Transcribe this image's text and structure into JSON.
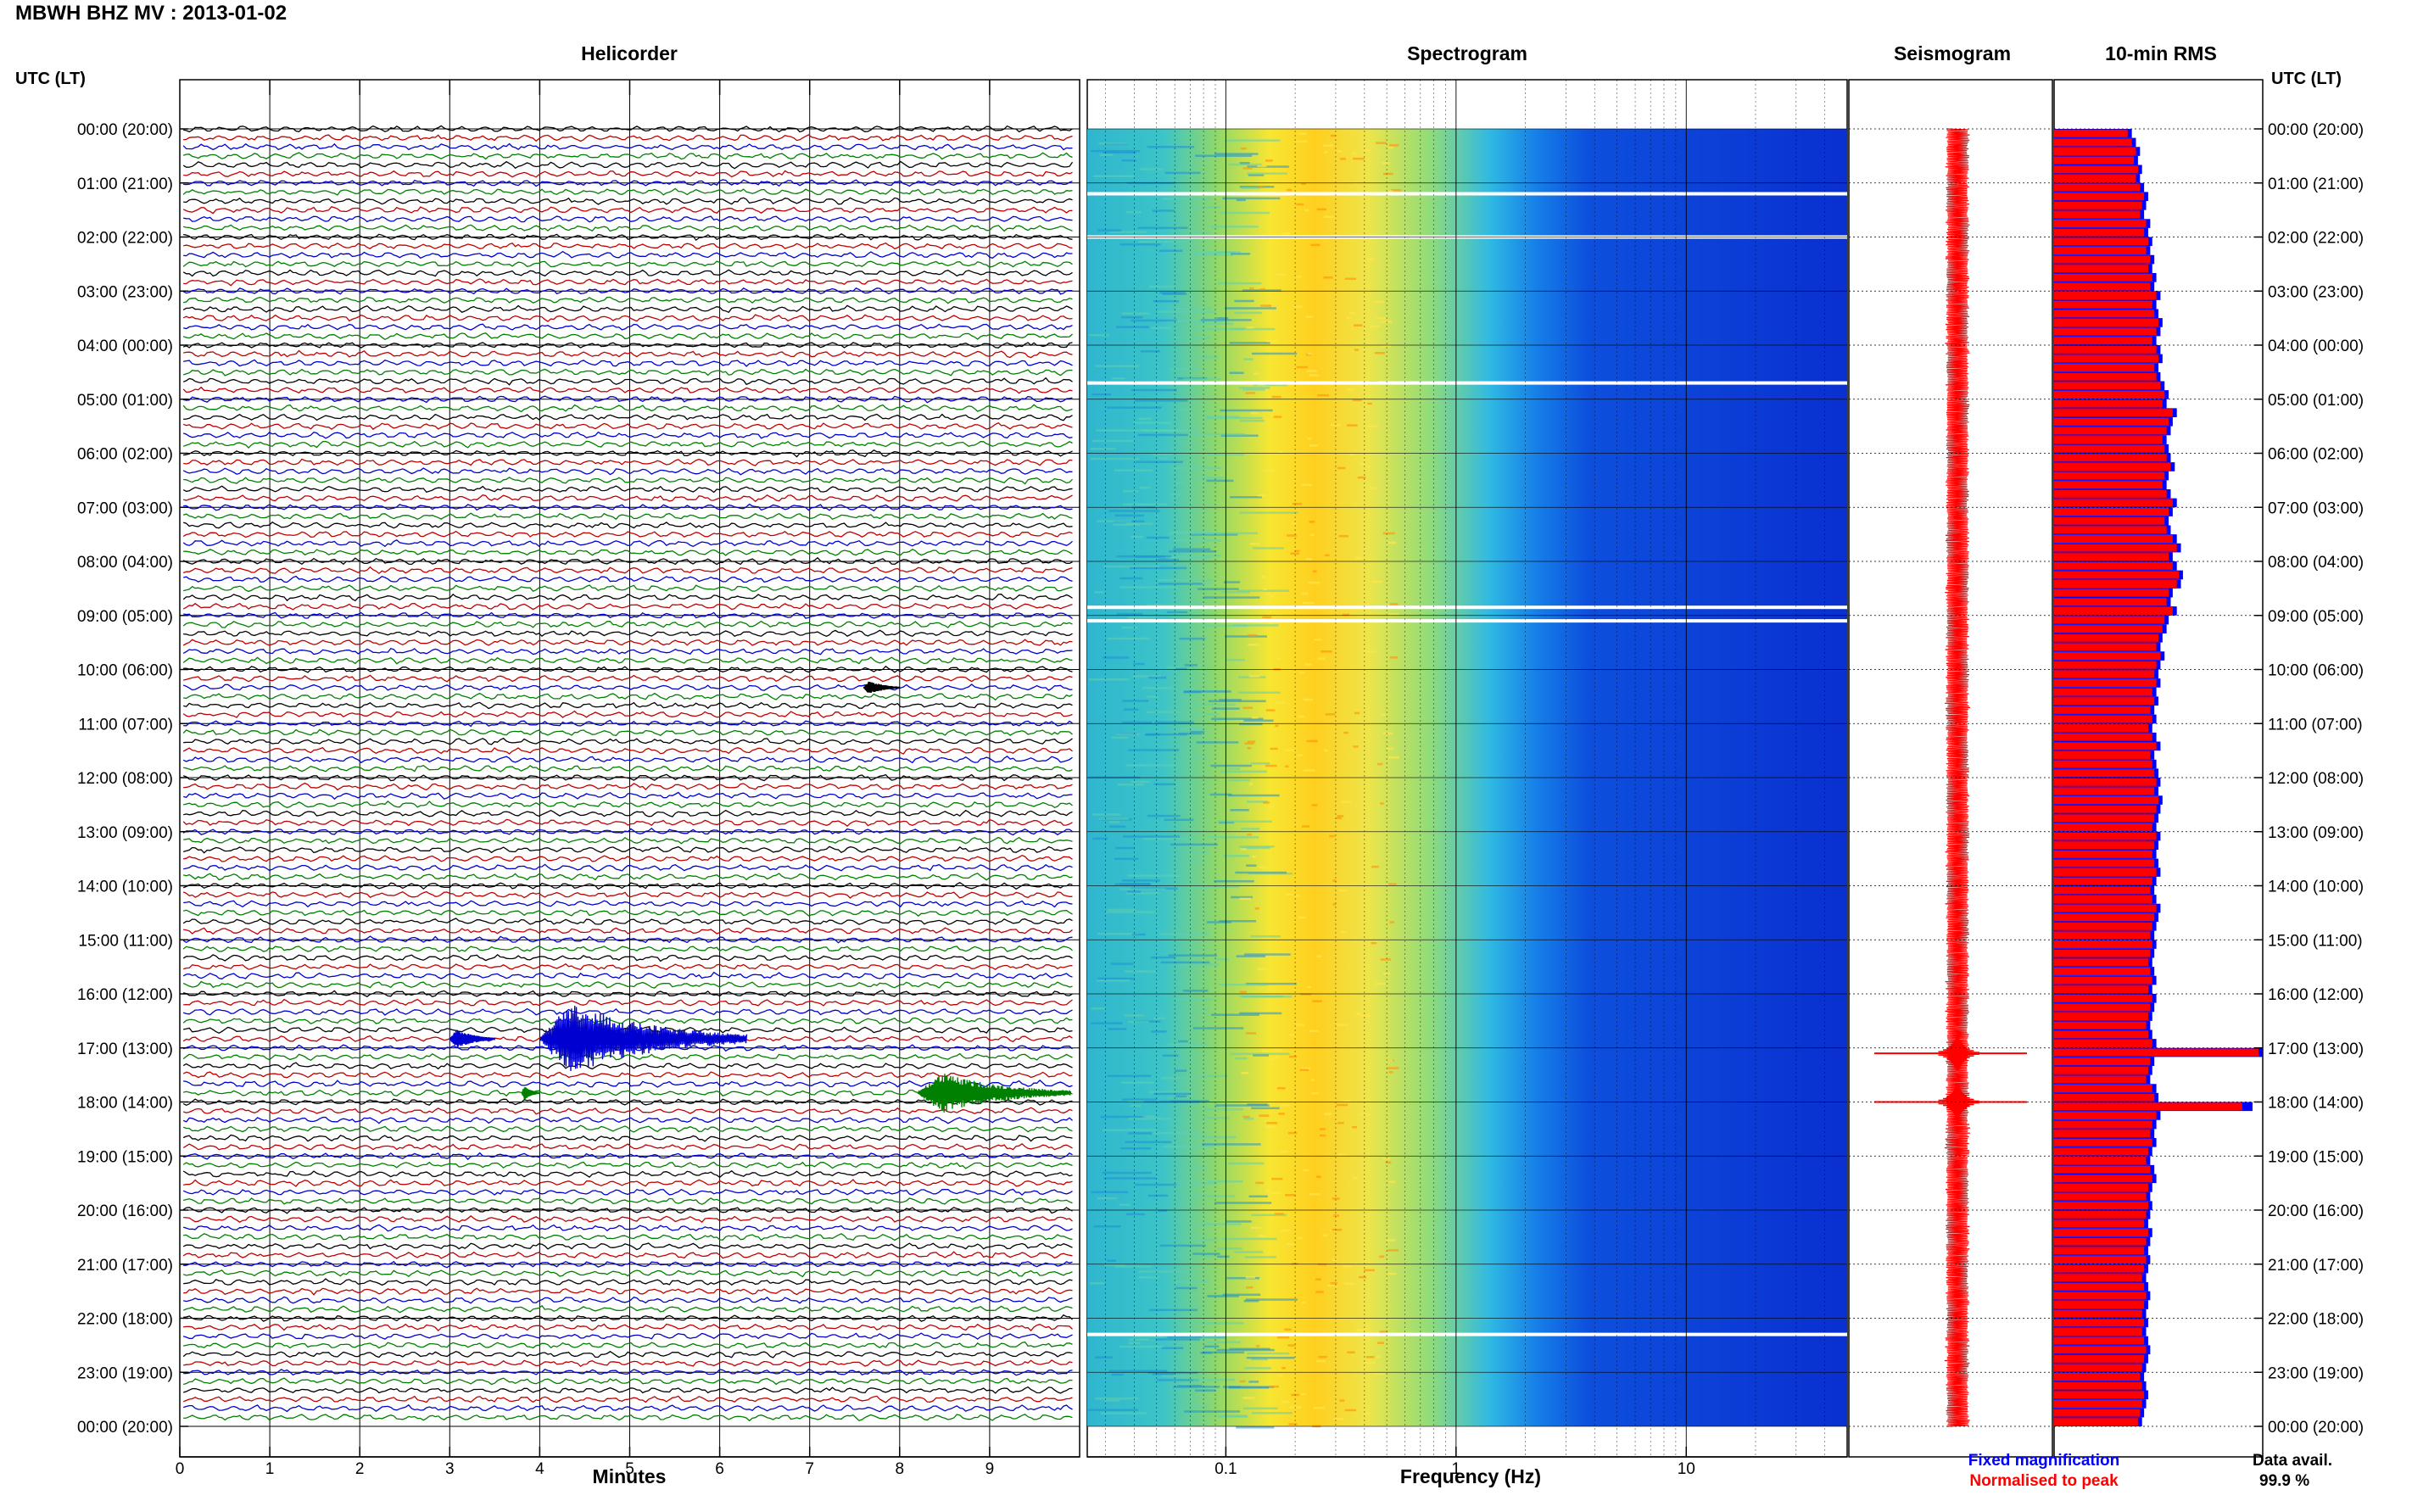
{
  "header": {
    "title": "MBWH BHZ MV : 2013-01-02",
    "utc_label": "UTC (LT)"
  },
  "panels": {
    "helicorder": "Helicorder",
    "spectrogram": "Spectrogram",
    "seismogram": "Seismogram",
    "rms": "10-min RMS"
  },
  "footer": {
    "helicorder_xlabel": "Minutes",
    "spectrogram_xlabel": "Frequency (Hz)",
    "legend_fixed": "Fixed magnification",
    "legend_normalised": "Normalised to peak",
    "data_avail_label": "Data avail.",
    "data_avail_value": "99.9 %"
  },
  "colors": {
    "trace_cycle": [
      "#000000",
      "#c00000",
      "#0000d0",
      "#008000"
    ],
    "seismogram": "#ff0000",
    "rms_fixed": "#0000ff",
    "rms_normalised": "#ff0000",
    "spectrogram_low": "#0a2fd8",
    "spectrogram_mid": "#24b8e0",
    "spectrogram_high": "#ffe200"
  },
  "chart_data": [
    {
      "type": "helicorder",
      "xlabel": "Minutes",
      "x_ticks": [
        0,
        1,
        2,
        3,
        4,
        5,
        6,
        7,
        8,
        9
      ],
      "xlim": [
        0,
        10
      ],
      "y_tick_labels": [
        "00:00 (20:00)",
        "01:00 (21:00)",
        "02:00 (22:00)",
        "03:00 (23:00)",
        "04:00 (00:00)",
        "05:00 (01:00)",
        "06:00 (02:00)",
        "07:00 (03:00)",
        "08:00 (04:00)",
        "09:00 (05:00)",
        "10:00 (06:00)",
        "11:00 (07:00)",
        "12:00 (08:00)",
        "13:00 (09:00)",
        "14:00 (10:00)",
        "15:00 (11:00)",
        "16:00 (12:00)",
        "17:00 (13:00)",
        "18:00 (14:00)",
        "19:00 (15:00)",
        "20:00 (16:00)",
        "21:00 (17:00)",
        "22:00 (18:00)",
        "23:00 (19:00)",
        "00:00 (20:00)"
      ],
      "lines_per_hour": 6,
      "events": [
        {
          "start_time": "16:50",
          "minutes": [
            3.0,
            3.5
          ],
          "amplitude": 0.7,
          "color": "#0000d0"
        },
        {
          "start_time": "16:50",
          "minutes": [
            4.0,
            6.3
          ],
          "amplitude": 2.6,
          "color": "#0000d0"
        },
        {
          "start_time": "17:50",
          "minutes": [
            8.2,
            9.9
          ],
          "amplitude": 1.5,
          "color": "#008000"
        },
        {
          "start_time": "17:50",
          "minutes": [
            3.8,
            4.0
          ],
          "amplitude": 0.5,
          "color": "#008000"
        },
        {
          "start_time": "10:20",
          "minutes": [
            7.6,
            8.0
          ],
          "amplitude": 0.5,
          "color": "#000000"
        }
      ]
    },
    {
      "type": "heatmap",
      "title": "Spectrogram",
      "xlabel": "Frequency (Hz)",
      "x_scale": "log",
      "x_tick_labels": [
        "0.1",
        "1",
        "10"
      ],
      "xlim": [
        0.025,
        50
      ],
      "dominant_band_hz": [
        0.12,
        0.5
      ],
      "data_gaps_hours": [
        1.2,
        2.0,
        4.7,
        8.85,
        9.1,
        22.3
      ]
    },
    {
      "type": "line",
      "title": "Seismogram",
      "orientation": "vertical",
      "spikes_hours": [
        17.1,
        18.0
      ]
    },
    {
      "type": "bar",
      "title": "10-min RMS",
      "orientation": "horizontal",
      "series": [
        {
          "name": "Fixed magnification",
          "values": [
            0.38,
            0.4,
            0.42,
            0.41,
            0.43,
            0.42,
            0.44,
            0.46,
            0.45,
            0.44,
            0.47,
            0.46,
            0.48,
            0.47,
            0.49,
            0.48,
            0.5,
            0.49,
            0.52,
            0.5,
            0.51,
            0.53,
            0.52,
            0.5,
            0.52,
            0.53,
            0.51,
            0.52,
            0.54,
            0.56,
            0.55,
            0.6,
            0.58,
            0.57,
            0.55,
            0.56,
            0.57,
            0.59,
            0.56,
            0.55,
            0.57,
            0.6,
            0.58,
            0.56,
            0.57,
            0.6,
            0.62,
            0.58,
            0.6,
            0.63,
            0.62,
            0.58,
            0.57,
            0.6,
            0.56,
            0.55,
            0.53,
            0.52,
            0.54,
            0.52,
            0.51,
            0.52,
            0.5,
            0.51,
            0.49,
            0.5,
            0.48,
            0.5,
            0.52,
            0.49,
            0.5,
            0.51,
            0.52,
            0.51,
            0.53,
            0.52,
            0.51,
            0.5,
            0.52,
            0.51,
            0.5,
            0.51,
            0.52,
            0.5,
            0.49,
            0.5,
            0.52,
            0.51,
            0.5,
            0.49,
            0.5,
            0.49,
            0.48,
            0.49,
            0.5,
            0.48,
            0.5,
            0.49,
            0.48,
            0.47,
            0.48,
            0.5,
            1.02,
            0.49,
            0.48,
            0.47,
            0.5,
            0.51,
            0.97,
            0.52,
            0.5,
            0.49,
            0.5,
            0.48,
            0.47,
            0.49,
            0.5,
            0.48,
            0.47,
            0.48,
            0.47,
            0.46,
            0.48,
            0.47,
            0.46,
            0.47,
            0.46,
            0.45,
            0.46,
            0.47,
            0.46,
            0.45,
            0.46,
            0.45,
            0.46,
            0.47,
            0.46,
            0.45,
            0.44,
            0.45,
            0.46,
            0.45,
            0.44,
            0.43
          ]
        },
        {
          "name": "Normalised to peak",
          "values": [
            0.36,
            0.38,
            0.4,
            0.39,
            0.41,
            0.4,
            0.42,
            0.44,
            0.43,
            0.42,
            0.45,
            0.44,
            0.46,
            0.45,
            0.47,
            0.46,
            0.48,
            0.47,
            0.5,
            0.48,
            0.49,
            0.51,
            0.5,
            0.48,
            0.5,
            0.51,
            0.49,
            0.5,
            0.52,
            0.54,
            0.53,
            0.58,
            0.56,
            0.55,
            0.53,
            0.54,
            0.55,
            0.57,
            0.54,
            0.53,
            0.55,
            0.58,
            0.56,
            0.54,
            0.55,
            0.58,
            0.6,
            0.56,
            0.58,
            0.61,
            0.6,
            0.56,
            0.55,
            0.58,
            0.54,
            0.53,
            0.51,
            0.5,
            0.52,
            0.5,
            0.49,
            0.5,
            0.48,
            0.49,
            0.47,
            0.48,
            0.46,
            0.48,
            0.5,
            0.47,
            0.48,
            0.49,
            0.5,
            0.49,
            0.51,
            0.5,
            0.49,
            0.48,
            0.5,
            0.49,
            0.48,
            0.49,
            0.5,
            0.48,
            0.47,
            0.48,
            0.5,
            0.49,
            0.48,
            0.47,
            0.48,
            0.47,
            0.46,
            0.47,
            0.48,
            0.46,
            0.48,
            0.47,
            0.46,
            0.45,
            0.46,
            0.48,
            1.0,
            0.47,
            0.46,
            0.45,
            0.48,
            0.49,
            0.92,
            0.5,
            0.48,
            0.47,
            0.48,
            0.46,
            0.45,
            0.47,
            0.48,
            0.46,
            0.45,
            0.46,
            0.45,
            0.44,
            0.46,
            0.45,
            0.44,
            0.45,
            0.44,
            0.43,
            0.44,
            0.45,
            0.44,
            0.43,
            0.44,
            0.43,
            0.44,
            0.45,
            0.44,
            0.43,
            0.42,
            0.43,
            0.44,
            0.43,
            0.42,
            0.41
          ]
        }
      ]
    }
  ]
}
